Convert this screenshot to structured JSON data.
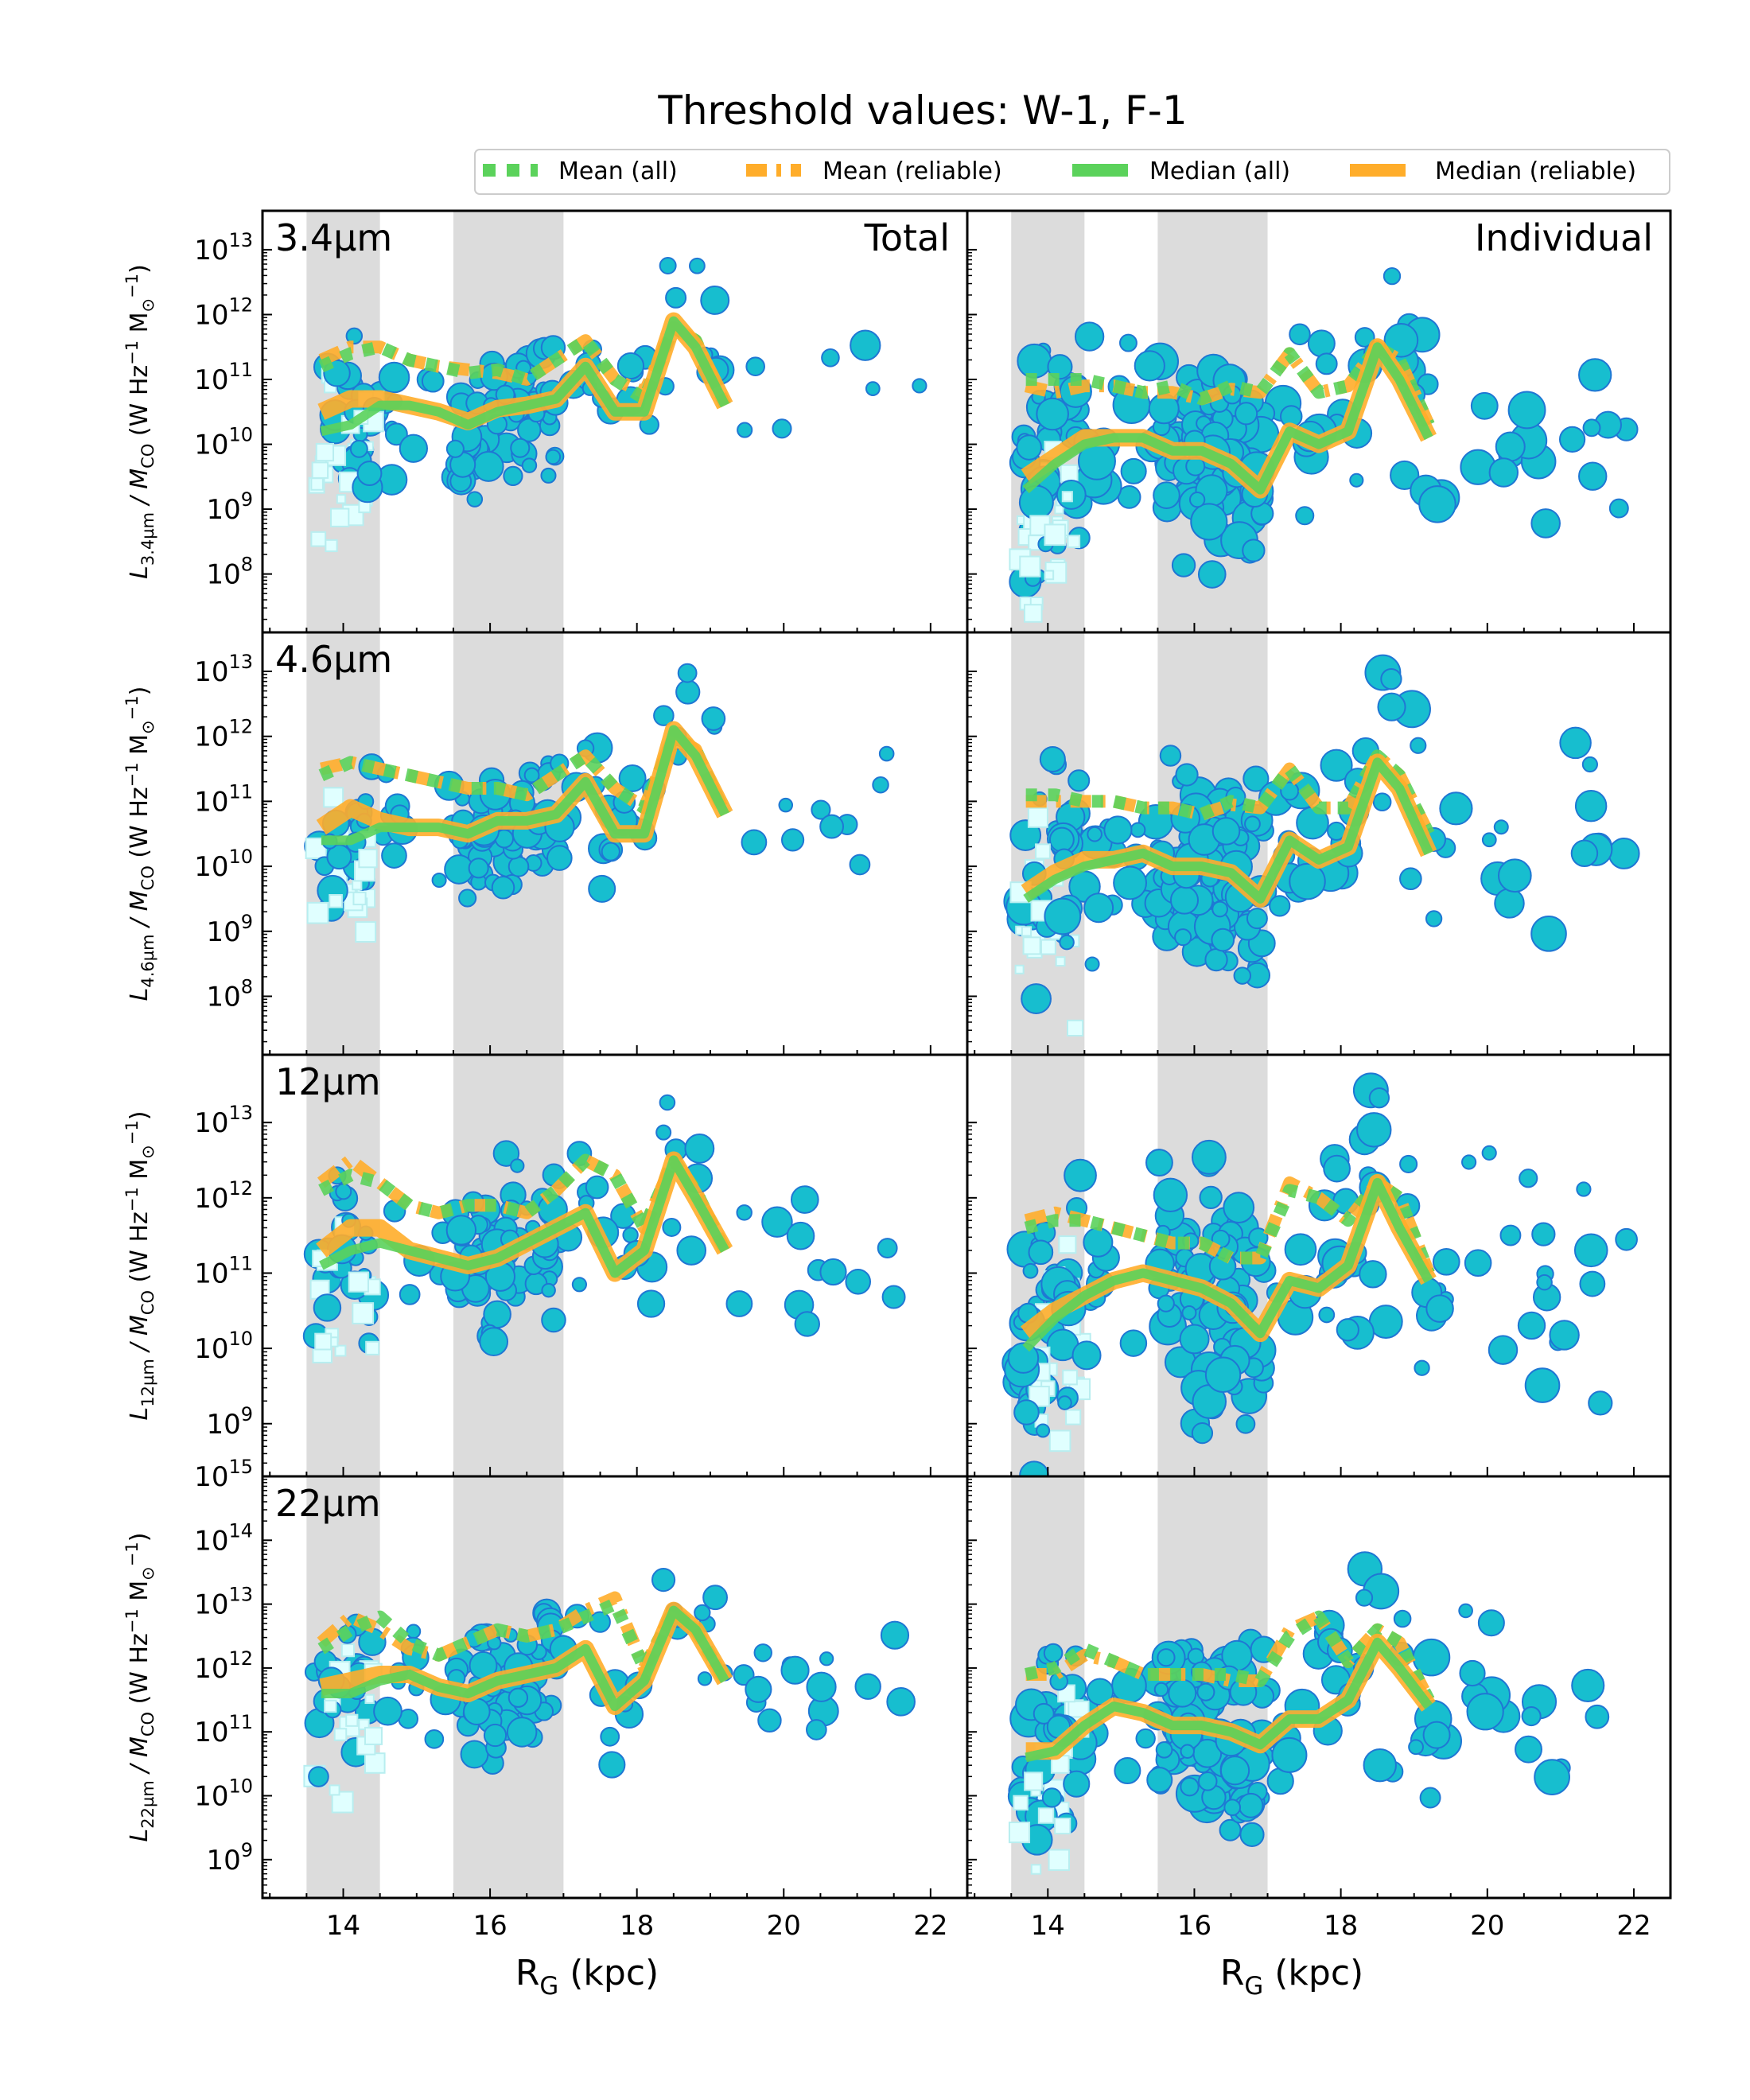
{
  "figure": {
    "title": "Threshold values: W-1, F-1",
    "column_titles": [
      "Total",
      "Individual"
    ],
    "x_axis_label": "R",
    "x_axis_label_sub": "G",
    "x_axis_label_unit": " (kpc)"
  },
  "legend": {
    "items": [
      {
        "label": "Mean (all)",
        "color": "#5bd25b",
        "style": "dotted"
      },
      {
        "label": "Mean (reliable)",
        "color": "#ffad2a",
        "style": "dashdot"
      },
      {
        "label": "Median (all)",
        "color": "#5bd25b",
        "style": "solid"
      },
      {
        "label": "Median (reliable)",
        "color": "#ffad2a",
        "style": "solid"
      }
    ]
  },
  "colors": {
    "marker_fill": "#17becf",
    "marker_edge": "#1f77d4",
    "square_fill": "#e0ffff",
    "square_edge": "#b8eef0",
    "shade": "#dcdcdc",
    "mean_all": "#5bd25b",
    "mean_rel": "#ffad2a",
    "median_all": "#5bd25b",
    "median_rel": "#ffad2a"
  },
  "chart_data": {
    "type": "scatter",
    "xlim": [
      12.9,
      22.5
    ],
    "xticks": [
      "14",
      "16",
      "18",
      "20",
      "22"
    ],
    "shaded_x_ranges": [
      [
        13.5,
        14.5
      ],
      [
        15.5,
        17.0
      ]
    ],
    "bin_x": [
      13.7,
      14.1,
      14.5,
      14.9,
      15.3,
      15.7,
      16.1,
      16.5,
      16.9,
      17.3,
      17.7,
      18.1,
      18.5,
      18.8,
      19.2
    ],
    "rows": [
      {
        "band": "3.4µm",
        "ylabel_main": "L",
        "ylabel_sub": "3.4µm",
        "ylabel_rest": " / M",
        "ylabel_sub2": "CO",
        "ylabel_unit": " (W Hz",
        "ylabel_unit_tail": " M",
        "ylim_exp": [
          7.1,
          13.6
        ],
        "yticks_exp": [
          "8",
          "9",
          "10",
          "11",
          "12",
          "13"
        ],
        "tick_base": "10",
        "panels": [
          {
            "mean_all": [
              11.2,
              11.4,
              11.5,
              11.3,
              11.2,
              11.1,
              11.15,
              11.0,
              11.3,
              11.6,
              11.0,
              10.7,
              11.8,
              11.6,
              10.6
            ],
            "mean_rel": [
              11.3,
              11.5,
              11.5,
              11.3,
              11.2,
              11.15,
              11.1,
              11.0,
              11.3,
              11.6,
              11.0,
              10.8,
              11.8,
              11.6,
              10.6
            ],
            "median_all": [
              10.2,
              10.3,
              10.6,
              10.6,
              10.5,
              10.3,
              10.5,
              10.6,
              10.7,
              11.2,
              10.5,
              10.5,
              11.9,
              11.5,
              10.6
            ],
            "median_rel": [
              10.5,
              10.7,
              10.7,
              10.6,
              10.5,
              10.35,
              10.55,
              10.6,
              10.7,
              11.2,
              10.5,
              10.5,
              11.9,
              11.5,
              10.6
            ]
          },
          {
            "mean_all": [
              11.0,
              11.0,
              11.0,
              10.9,
              10.8,
              10.9,
              10.7,
              10.9,
              10.8,
              11.4,
              10.8,
              10.9,
              11.5,
              11.3,
              10.3
            ],
            "mean_rel": [
              10.9,
              10.8,
              10.9,
              10.9,
              10.8,
              10.8,
              10.7,
              10.85,
              10.8,
              11.4,
              10.8,
              10.9,
              11.5,
              11.3,
              10.3
            ],
            "median_all": [
              9.3,
              9.7,
              10.0,
              10.1,
              10.1,
              9.9,
              9.9,
              9.7,
              9.3,
              10.2,
              10.0,
              10.2,
              11.5,
              11.0,
              10.1
            ],
            "median_rel": [
              9.5,
              9.8,
              10.1,
              10.1,
              10.1,
              9.9,
              9.9,
              9.7,
              9.3,
              10.2,
              10.0,
              10.2,
              11.5,
              11.0,
              10.1
            ]
          }
        ]
      },
      {
        "band": "4.6µm",
        "ylabel_main": "L",
        "ylabel_sub": "4.6µm",
        "ylabel_rest": " / M",
        "ylabel_sub2": "CO",
        "ylabel_unit": " (W Hz",
        "ylabel_unit_tail": " M",
        "ylim_exp": [
          7.1,
          13.6
        ],
        "yticks_exp": [
          "8",
          "9",
          "10",
          "11",
          "12",
          "13"
        ],
        "tick_base": "10",
        "panels": [
          {
            "mean_all": [
              11.4,
              11.6,
              11.5,
              11.4,
              11.3,
              11.2,
              11.2,
              11.1,
              11.4,
              11.7,
              11.2,
              10.9,
              12.0,
              11.8,
              10.8
            ],
            "mean_rel": [
              11.5,
              11.6,
              11.5,
              11.4,
              11.3,
              11.2,
              11.2,
              11.1,
              11.4,
              11.7,
              11.2,
              10.9,
              12.0,
              11.8,
              10.8
            ],
            "median_all": [
              10.4,
              10.4,
              10.6,
              10.6,
              10.6,
              10.5,
              10.7,
              10.7,
              10.8,
              11.3,
              10.5,
              10.5,
              12.1,
              11.7,
              10.8
            ],
            "median_rel": [
              10.6,
              10.9,
              10.7,
              10.6,
              10.6,
              10.5,
              10.7,
              10.7,
              10.8,
              11.3,
              10.5,
              10.5,
              12.1,
              11.7,
              10.8
            ]
          },
          {
            "mean_all": [
              11.1,
              11.1,
              11.0,
              11.0,
              10.9,
              10.9,
              10.8,
              11.0,
              10.9,
              11.5,
              10.9,
              10.9,
              11.7,
              11.4,
              10.5
            ],
            "mean_rel": [
              11.0,
              11.0,
              11.0,
              11.0,
              10.9,
              10.9,
              10.8,
              10.95,
              10.9,
              11.5,
              10.9,
              10.9,
              11.7,
              11.4,
              10.5
            ],
            "median_all": [
              9.5,
              9.8,
              10.0,
              10.1,
              10.2,
              10.0,
              10.0,
              9.9,
              9.5,
              10.4,
              10.1,
              10.3,
              11.6,
              11.2,
              10.2
            ],
            "median_rel": [
              9.6,
              9.9,
              10.1,
              10.1,
              10.2,
              10.0,
              10.0,
              9.9,
              9.5,
              10.4,
              10.1,
              10.3,
              11.6,
              11.2,
              10.2
            ]
          }
        ]
      },
      {
        "band": "12µm",
        "ylabel_main": "L",
        "ylabel_sub": "12µm",
        "ylabel_rest": " / M",
        "ylabel_sub2": "CO",
        "ylabel_unit": " (W Hz",
        "ylabel_unit_tail": " M",
        "ylim_exp": [
          8.3,
          13.9
        ],
        "yticks_exp": [
          "9",
          "10",
          "11",
          "12",
          "13"
        ],
        "tick_base": "10",
        "panels": [
          {
            "mean_all": [
              12.1,
              12.3,
              12.2,
              11.9,
              11.8,
              11.9,
              11.9,
              11.8,
              12.1,
              12.5,
              12.3,
              11.6,
              12.5,
              12.1,
              11.3
            ],
            "mean_rel": [
              12.2,
              12.5,
              12.2,
              11.9,
              11.8,
              11.9,
              11.9,
              11.8,
              12.1,
              12.5,
              12.3,
              11.6,
              12.5,
              12.1,
              11.3
            ],
            "median_all": [
              11.1,
              11.3,
              11.4,
              11.3,
              11.2,
              11.1,
              11.2,
              11.4,
              11.6,
              11.8,
              11.0,
              11.3,
              12.5,
              12.0,
              11.3
            ],
            "median_rel": [
              11.3,
              11.6,
              11.6,
              11.3,
              11.2,
              11.1,
              11.2,
              11.4,
              11.6,
              11.8,
              11.0,
              11.3,
              12.5,
              12.0,
              11.3
            ]
          },
          {
            "mean_all": [
              11.6,
              11.7,
              11.7,
              11.6,
              11.5,
              11.4,
              11.4,
              11.2,
              11.2,
              12.1,
              12.0,
              11.7,
              12.2,
              12.0,
              11.0
            ],
            "mean_rel": [
              11.7,
              11.8,
              11.7,
              11.6,
              11.5,
              11.4,
              11.4,
              11.2,
              11.2,
              12.2,
              12.0,
              11.7,
              12.2,
              12.0,
              11.0
            ],
            "median_all": [
              10.0,
              10.4,
              10.7,
              10.9,
              11.0,
              10.9,
              10.8,
              10.6,
              10.2,
              10.9,
              10.8,
              11.1,
              12.2,
              11.6,
              10.9
            ],
            "median_rel": [
              10.2,
              10.5,
              10.7,
              10.9,
              11.0,
              10.9,
              10.8,
              10.6,
              10.2,
              10.9,
              10.8,
              11.1,
              12.2,
              11.6,
              10.9
            ]
          }
        ]
      },
      {
        "band": "22µm",
        "ylabel_main": "L",
        "ylabel_sub": "22µm",
        "ylabel_rest": " / M",
        "ylabel_sub2": "CO",
        "ylabel_unit": " (W Hz",
        "ylabel_unit_tail": " M",
        "ylim_exp": [
          8.4,
          15.0
        ],
        "yticks_exp": [
          "9",
          "10",
          "11",
          "12",
          "13",
          "14",
          "15"
        ],
        "tick_base": "10",
        "panels": [
          {
            "mean_all": [
              12.3,
              12.6,
              12.8,
              12.4,
              12.2,
              12.4,
              12.6,
              12.5,
              12.6,
              12.8,
              13.0,
              12.0,
              12.9,
              12.6,
              11.8
            ],
            "mean_rel": [
              12.4,
              12.8,
              12.6,
              12.3,
              12.2,
              12.4,
              12.6,
              12.5,
              12.6,
              12.9,
              13.1,
              12.0,
              12.9,
              12.6,
              11.8
            ],
            "median_all": [
              11.6,
              11.6,
              11.8,
              11.9,
              11.7,
              11.6,
              11.8,
              11.9,
              12.0,
              12.3,
              11.4,
              11.8,
              12.9,
              12.6,
              11.8
            ],
            "median_rel": [
              11.7,
              11.8,
              11.9,
              11.9,
              11.7,
              11.6,
              11.8,
              11.9,
              12.0,
              12.3,
              11.4,
              11.8,
              12.9,
              12.6,
              11.8
            ]
          },
          {
            "mean_all": [
              11.9,
              12.0,
              12.3,
              12.1,
              11.9,
              11.9,
              11.9,
              11.9,
              11.8,
              12.5,
              12.8,
              12.1,
              12.6,
              12.4,
              11.5
            ],
            "mean_rel": [
              11.9,
              11.9,
              12.2,
              12.1,
              11.9,
              11.9,
              11.9,
              11.8,
              11.8,
              12.6,
              12.8,
              12.1,
              12.6,
              12.4,
              11.5
            ],
            "median_all": [
              10.6,
              10.7,
              11.1,
              11.4,
              11.3,
              11.1,
              11.1,
              11.0,
              10.8,
              11.2,
              11.2,
              11.5,
              12.4,
              12.0,
              11.4
            ],
            "median_rel": [
              10.7,
              10.7,
              11.1,
              11.4,
              11.3,
              11.1,
              11.1,
              11.0,
              10.8,
              11.2,
              11.2,
              11.5,
              12.4,
              12.0,
              11.4
            ]
          }
        ]
      }
    ]
  }
}
